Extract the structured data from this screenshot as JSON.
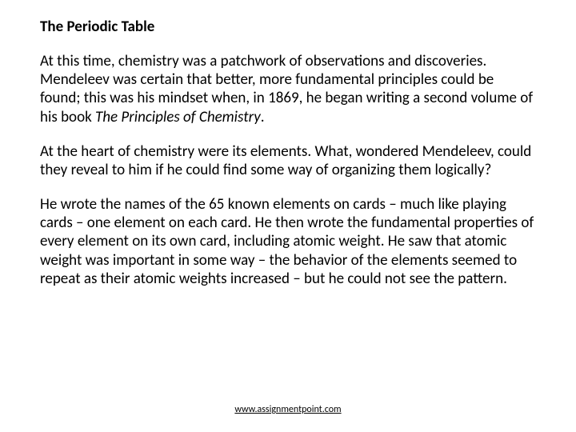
{
  "title": "The Periodic Table",
  "p1a": "At this time, chemistry was a patchwork of observations and discoveries. Mendeleev was certain that better, more fundamental principles could be found; this was his mindset when, in 1869, he began writing a second volume of his book ",
  "p1i": "The Principles of Chemistry",
  "p1b": ".",
  "p2": "At the heart of chemistry were its elements. What, wondered Mendeleev, could they reveal to him if he could find some way of organizing them logically?",
  "p3": "He wrote the names of the 65 known elements on cards – much like playing cards – one element on each card. He then wrote the fundamental properties of every element on its own card, including atomic weight. He saw that atomic weight was important in some way – the behavior of the elements seemed to repeat as their atomic weights increased – but he could not see the pattern.",
  "footer": "www.assignmentpoint.com"
}
